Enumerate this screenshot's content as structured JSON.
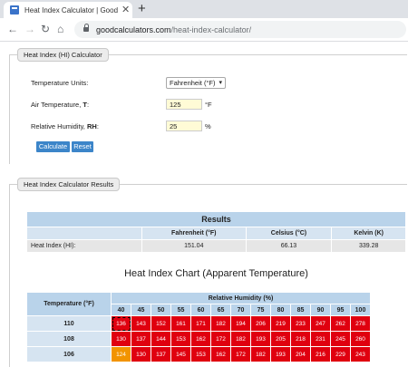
{
  "browser": {
    "tab_title": "Heat Index Calculator | Good Calc",
    "url_domain": "goodcalculators.com",
    "url_path": "/heat-index-calculator/"
  },
  "calculator": {
    "legend": "Heat Index (HI) Calculator",
    "units_label": "Temperature Units:",
    "units_value": "Fahrenheit (°F)",
    "temp_label": "Air Temperature, T:",
    "temp_value": "125",
    "temp_unit": "°F",
    "rh_label": "Relative Humidity, RH:",
    "rh_value": "25",
    "rh_unit": "%",
    "calculate": "Calculate",
    "reset": "Reset"
  },
  "results": {
    "legend": "Heat Index Calculator Results",
    "title": "Results",
    "columns": [
      "Fahrenheit (°F)",
      "Celsius (°C)",
      "Kelvin (K)"
    ],
    "row_label": "Heat Index (HI):",
    "values": [
      "151.04",
      "66.13",
      "339.28"
    ]
  },
  "chart": {
    "title": "Heat Index Chart (Apparent Temperature)",
    "temp_header": "Temperature (°F)",
    "rh_header": "Relative Humidity (%)",
    "rh_values": [
      "40",
      "45",
      "50",
      "55",
      "60",
      "65",
      "70",
      "75",
      "80",
      "85",
      "90",
      "95",
      "100"
    ],
    "rows": [
      {
        "temp": "110",
        "cells": [
          "136",
          "143",
          "152",
          "161",
          "171",
          "182",
          "194",
          "206",
          "219",
          "233",
          "247",
          "262",
          "278"
        ]
      },
      {
        "temp": "108",
        "cells": [
          "130",
          "137",
          "144",
          "153",
          "162",
          "172",
          "182",
          "193",
          "205",
          "218",
          "231",
          "245",
          "260"
        ]
      },
      {
        "temp": "106",
        "cells": [
          "124",
          "130",
          "137",
          "145",
          "153",
          "162",
          "172",
          "182",
          "193",
          "204",
          "216",
          "229",
          "243"
        ]
      }
    ],
    "colors": {
      "extreme_danger": "#e0000f",
      "danger": "#f29400"
    }
  }
}
